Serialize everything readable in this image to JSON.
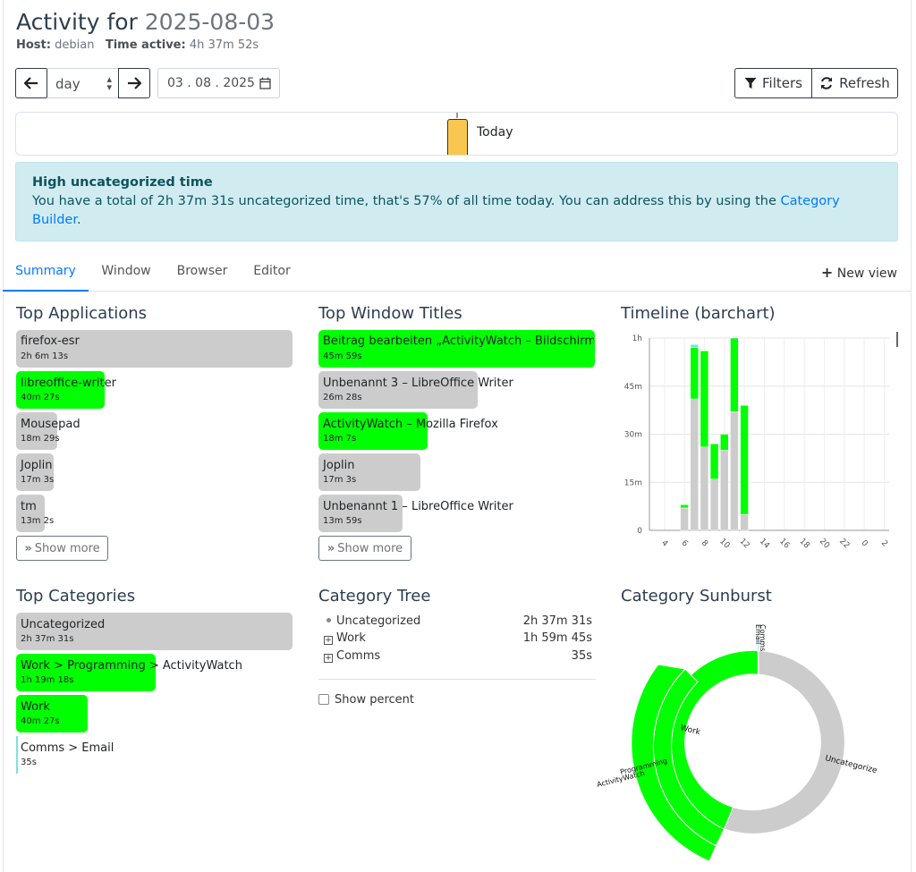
{
  "header": {
    "title_prefix": "Activity for",
    "title_date": "2025-08-03",
    "host_label": "Host:",
    "host_value": "debian",
    "time_label": "Time active:",
    "time_value": "4h 37m 52s"
  },
  "controls": {
    "period": "day",
    "date_value": "03 . 08 . 2025",
    "filters_label": "Filters",
    "refresh_label": "Refresh"
  },
  "timeline": {
    "today_label": "Today"
  },
  "alert": {
    "heading": "High uncategorized time",
    "text": "You have a total of 2h 37m 31s uncategorized time, that's 57% of all time today. You can address this by using the",
    "link": "Category",
    "link2": "Builder",
    "end": "."
  },
  "tabs": {
    "summary": "Summary",
    "window": "Window",
    "browser": "Browser",
    "editor": "Editor",
    "new_view": "New view"
  },
  "top_applications": {
    "title": "Top Applications",
    "items": [
      {
        "name": "firefox-esr",
        "time": "2h 6m 13s",
        "color": "#cccccc"
      },
      {
        "name": "libreoffice-writer",
        "time": "40m 27s",
        "color": "#00ff00"
      },
      {
        "name": "Mousepad",
        "time": "18m 29s",
        "color": "#cccccc"
      },
      {
        "name": "Joplin",
        "time": "17m 3s",
        "color": "#cccccc"
      },
      {
        "name": "tm",
        "time": "13m 2s",
        "color": "#cccccc"
      }
    ],
    "show_more": "Show more"
  },
  "top_window_titles": {
    "title": "Top Window Titles",
    "items": [
      {
        "name": "Beitrag bearbeiten „ActivityWatch – Bildschirmz",
        "time": "45m 59s",
        "color": "#00ff00"
      },
      {
        "name": "Unbenannt 3 – LibreOffice Writer",
        "time": "26m 28s",
        "color": "#cccccc"
      },
      {
        "name": "ActivityWatch – Mozilla Firefox",
        "time": "18m 7s",
        "color": "#00ff00"
      },
      {
        "name": "Joplin",
        "time": "17m 3s",
        "color": "#cccccc"
      },
      {
        "name": "Unbenannt 1 – LibreOffice Writer",
        "time": "13m 59s",
        "color": "#cccccc"
      }
    ],
    "show_more": "Show more"
  },
  "timeline_chart": {
    "title": "Timeline (barchart)"
  },
  "top_categories": {
    "title": "Top Categories",
    "items": [
      {
        "name": "Uncategorized",
        "time": "2h 37m 31s",
        "color": "#cccccc"
      },
      {
        "name": "Work > Programming > ActivityWatch",
        "time": "1h 19m 18s",
        "color": "#00ff00"
      },
      {
        "name": "Work",
        "time": "40m 27s",
        "color": "#00ff00"
      },
      {
        "name": "Comms > Email",
        "time": "35s",
        "color": "#80e0e0"
      }
    ]
  },
  "category_tree": {
    "title": "Category Tree",
    "rows": [
      {
        "label": "Uncategorized",
        "value": "2h 37m 31s"
      },
      {
        "label": "Work",
        "value": "1h 59m 45s"
      },
      {
        "label": "Comms",
        "value": "35s"
      }
    ],
    "show_percent": "Show percent"
  },
  "sunburst": {
    "title": "Category Sunburst",
    "labels": {
      "work": "Work",
      "uncategorized": "Uncategorize",
      "email": "Email",
      "comms": "Comms",
      "programming": "Programming",
      "activitywatch": "ActivityWatch"
    },
    "colors": {
      "work": "#00ff00",
      "uncategorized": "#cccccc"
    }
  },
  "chart_data": {
    "type": "bar",
    "title": "Timeline (barchart)",
    "xlabel": "",
    "ylabel": "",
    "x_ticks": [
      "4",
      "6",
      "8",
      "10",
      "12",
      "14",
      "16",
      "18",
      "20",
      "22",
      "0",
      "2"
    ],
    "y_ticks": [
      "0",
      "15m",
      "30m",
      "45m",
      "1h"
    ],
    "ylim_minutes": [
      0,
      60
    ],
    "categories": [
      "6",
      "7",
      "8",
      "9",
      "10",
      "11",
      "12",
      "13"
    ],
    "stacked": true,
    "series": [
      {
        "color": "#cccccc",
        "values": [
          7,
          41,
          26,
          16,
          25,
          37,
          5,
          0
        ]
      },
      {
        "color": "#00ff00",
        "values": [
          1,
          16,
          30,
          11,
          5,
          23,
          34,
          0
        ]
      },
      {
        "color": "#80e0e0",
        "values": [
          0,
          1,
          0,
          0,
          0,
          0,
          0,
          0
        ]
      }
    ]
  }
}
